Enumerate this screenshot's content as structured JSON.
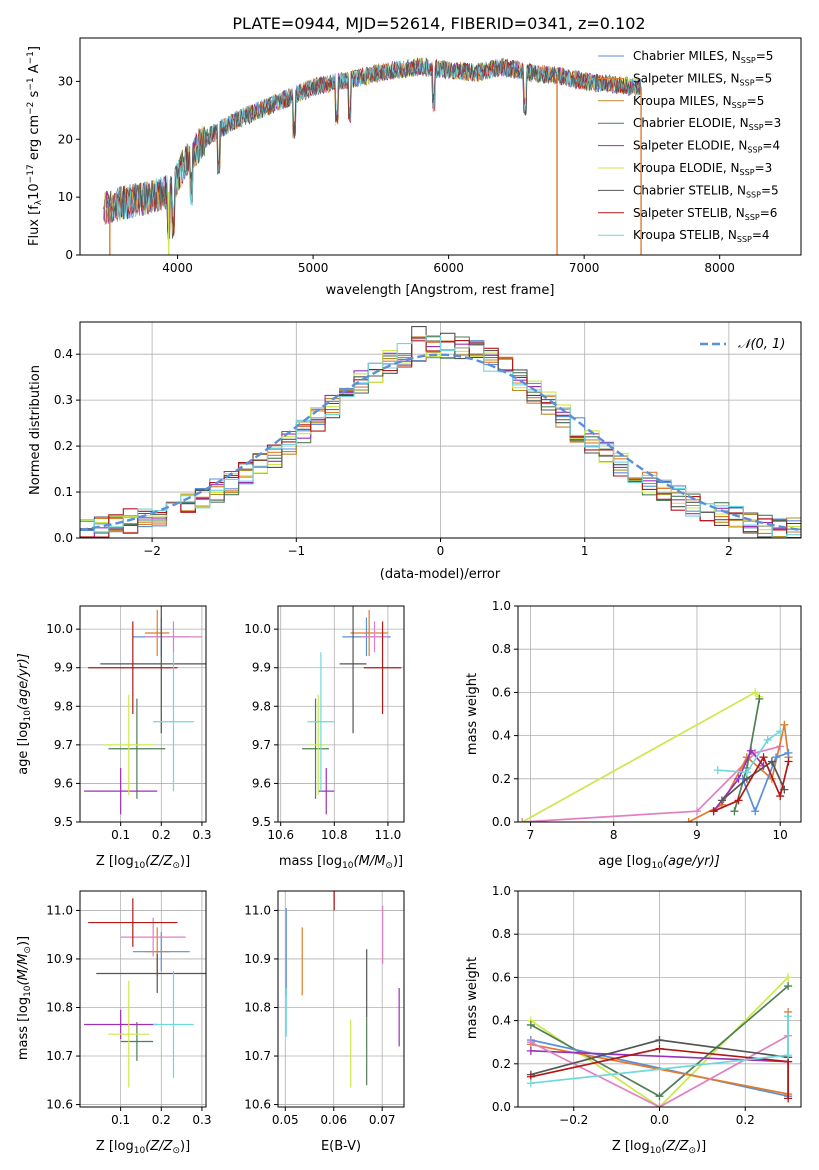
{
  "figure_title": "PLATE=0944, MJD=52614, FIBERID=0341, z=0.102",
  "colors": {
    "Chabrier MILES": "#5b8fd8",
    "Salpeter MILES": "#e07b2e",
    "Kroupa MILES": "#b88a2a",
    "Chabrier ELODIE": "#4f7f55",
    "Salpeter ELODIE": "#9b30b8",
    "Kroupa ELODIE": "#cde84a",
    "Chabrier STELIB": "#555555",
    "Salpeter STELIB": "#b01818",
    "Kroupa STELIB": "#6fd8dc",
    "pink": "#e27fc4",
    "normal": "#5b8fd8",
    "grid": "#b0b0b0"
  },
  "spectrum": {
    "xlabel": "wavelength [Angstrom, rest frame]",
    "ylabel_main": "Flux [f",
    "ylabel_sub": "λ",
    "ylabel_rest": "10",
    "ylabel_sup1": "−17",
    "ylabel_unit": " erg cm",
    "ylabel_sup2": "−2",
    "ylabel_s": " s",
    "ylabel_sup3": "−1",
    "ylabel_A": " A",
    "ylabel_sup4": "−1",
    "ylabel_end": "]",
    "xticks": [
      "4000",
      "5000",
      "6000",
      "7000",
      "8000"
    ],
    "yticks": [
      "0",
      "10",
      "20",
      "30"
    ],
    "legend": [
      {
        "name": "Chabrier MILES",
        "nssp": "5"
      },
      {
        "name": "Salpeter MILES",
        "nssp": "5"
      },
      {
        "name": "Kroupa MILES",
        "nssp": "5"
      },
      {
        "name": "Chabrier ELODIE",
        "nssp": "3"
      },
      {
        "name": "Salpeter ELODIE",
        "nssp": "4"
      },
      {
        "name": "Kroupa ELODIE",
        "nssp": "3"
      },
      {
        "name": "Chabrier STELIB",
        "nssp": "5"
      },
      {
        "name": "Salpeter STELIB",
        "nssp": "6"
      },
      {
        "name": "Kroupa STELIB",
        "nssp": "4"
      }
    ],
    "nssp_prefix": ", N",
    "nssp_sub": "SSP",
    "nssp_eq": "="
  },
  "residuals": {
    "xlabel": "(data-model)/error",
    "ylabel": "Normed distribution",
    "xticks": [
      "−2",
      "−1",
      "0",
      "1",
      "2"
    ],
    "yticks": [
      "0.0",
      "0.1",
      "0.2",
      "0.3",
      "0.4"
    ],
    "legend_label": "𝒩(0, 1)"
  },
  "panels": {
    "age_ylabel": "age  [log",
    "age_ylabel_sub": "10",
    "age_ylabel_rest": "(age/yr)]",
    "z_xlabel": "Z [log",
    "z_xlabel_sub": "10",
    "z_xlabel_rest": "(Z/Z",
    "z_xlabel_sub2": "⊙",
    "z_xlabel_end": ")]",
    "mass_label": "mass [log",
    "mass_label_sub": "10",
    "mass_label_rest": "(M/M",
    "mass_label_sub2": "⊙",
    "mass_label_end": ")]",
    "ebv_xlabel": "E(B-V)",
    "mw_ylabel": "mass weight",
    "age_xlabel": "age  [log",
    "age_xlabel_sub": "10",
    "age_xlabel_rest": "(age/yr)]",
    "age_yticks": [
      "9.5",
      "9.6",
      "9.7",
      "9.8",
      "9.9",
      "10.0"
    ],
    "z_xticks": [
      "0.1",
      "0.2",
      "0.3"
    ],
    "mass_xticks": [
      "10.6",
      "10.8",
      "11.0"
    ],
    "mass_yticks": [
      "10.6",
      "10.7",
      "10.8",
      "10.9",
      "11.0"
    ],
    "ebv_xticks": [
      "0.05",
      "0.06",
      "0.07"
    ],
    "mw_yticks": [
      "0.0",
      "0.2",
      "0.4",
      "0.6",
      "0.8",
      "1.0"
    ],
    "mw_age_xticks": [
      "7",
      "8",
      "9",
      "10"
    ],
    "mw_z_xticks": [
      "−0.2",
      "0.0",
      "0.2"
    ]
  },
  "chart_data": [
    {
      "type": "line",
      "title": "PLATE=0944, MJD=52614, FIBERID=0341, z=0.102",
      "xlabel": "wavelength [Angstrom, rest frame]",
      "ylabel": "Flux [fλ10^-17 erg cm^-2 s^-1 A^-1]",
      "xlim": [
        3280,
        8600
      ],
      "ylim": [
        0,
        37.5
      ],
      "series": [
        {
          "name": "Chabrier MILES, NSSP=5"
        },
        {
          "name": "Salpeter MILES, NSSP=5"
        },
        {
          "name": "Kroupa MILES, NSSP=5"
        },
        {
          "name": "Chabrier ELODIE, NSSP=3"
        },
        {
          "name": "Salpeter ELODIE, NSSP=4"
        },
        {
          "name": "Kroupa ELODIE, NSSP=3"
        },
        {
          "name": "Chabrier STELIB, NSSP=5"
        },
        {
          "name": "Salpeter STELIB, NSSP=6"
        },
        {
          "name": "Kroupa STELIB, NSSP=4"
        }
      ],
      "continuum_x": [
        3450,
        3600,
        3800,
        3950,
        4050,
        4200,
        4400,
        4600,
        4800,
        5000,
        5200,
        5400,
        5600,
        5800,
        6000,
        6200,
        6400,
        6600,
        6800,
        7000,
        7200,
        7400
      ],
      "continuum_y": [
        8,
        9,
        10,
        11,
        16,
        20,
        23,
        25,
        27,
        29,
        30,
        31,
        32,
        32.5,
        32,
        31.5,
        32.5,
        31.5,
        31,
        30,
        29.5,
        29
      ],
      "grid": false,
      "legend": "right"
    },
    {
      "type": "line",
      "xlabel": "(data-model)/error",
      "ylabel": "Normed distribution",
      "xlim": [
        -2.5,
        2.5
      ],
      "ylim": [
        0,
        0.47
      ],
      "bin_width": 0.1,
      "series_names": [
        "Chabrier MILES",
        "Salpeter MILES",
        "Kroupa MILES",
        "Chabrier ELODIE",
        "Salpeter ELODIE",
        "Kroupa ELODIE",
        "Chabrier STELIB",
        "Salpeter STELIB",
        "Kroupa STELIB"
      ],
      "reference": "N(0,1)",
      "grid": true,
      "legend": "top-right"
    },
    {
      "type": "scatter",
      "xlabel": "Z [log10(Z/Z⊙)]",
      "ylabel": "age [log10(age/yr)]",
      "xlim": [
        0.0,
        0.31
      ],
      "ylim": [
        9.5,
        10.06
      ],
      "points": [
        {
          "x": 0.2,
          "y": 9.98,
          "xerr": 0.07,
          "yerr": 0.05,
          "color": "Chabrier MILES"
        },
        {
          "x": 0.19,
          "y": 9.99,
          "xerr": 0.03,
          "yerr": 0.06,
          "color": "Salpeter MILES"
        },
        {
          "x": 0.23,
          "y": 9.98,
          "xerr": 0.07,
          "yerr": 0.04,
          "color": "pink"
        },
        {
          "x": 0.14,
          "y": 9.69,
          "xerr": 0.07,
          "yerr": 0.13,
          "color": "Chabrier ELODIE"
        },
        {
          "x": 0.1,
          "y": 9.58,
          "xerr": 0.09,
          "yerr": 0.06,
          "color": "Salpeter ELODIE"
        },
        {
          "x": 0.12,
          "y": 9.7,
          "xerr": 0.06,
          "yerr": 0.13,
          "color": "Kroupa ELODIE"
        },
        {
          "x": 0.2,
          "y": 9.91,
          "xerr": 0.15,
          "yerr": 0.18,
          "color": "Chabrier STELIB"
        },
        {
          "x": 0.13,
          "y": 9.9,
          "xerr": 0.11,
          "yerr": 0.12,
          "color": "Salpeter STELIB"
        },
        {
          "x": 0.23,
          "y": 9.76,
          "xerr": 0.05,
          "yerr": 0.18,
          "color": "Kroupa STELIB"
        }
      ]
    },
    {
      "type": "scatter",
      "xlabel": "mass [log10(M/M⊙)]",
      "ylabel": "age [log10(age/yr)]",
      "xlim": [
        10.59,
        11.06
      ],
      "ylim": [
        9.5,
        10.06
      ],
      "points": [
        {
          "x": 10.92,
          "y": 9.98,
          "xerr": 0.09,
          "yerr": 0.05,
          "color": "Chabrier MILES"
        },
        {
          "x": 10.93,
          "y": 9.99,
          "xerr": 0.07,
          "yerr": 0.06,
          "color": "Salpeter MILES"
        },
        {
          "x": 10.95,
          "y": 9.98,
          "xerr": 0.05,
          "yerr": 0.04,
          "color": "pink"
        },
        {
          "x": 10.73,
          "y": 9.69,
          "xerr": 0.05,
          "yerr": 0.13,
          "color": "Chabrier ELODIE"
        },
        {
          "x": 10.77,
          "y": 9.58,
          "xerr": 0.03,
          "yerr": 0.06,
          "color": "Salpeter ELODIE"
        },
        {
          "x": 10.74,
          "y": 9.7,
          "xerr": 0.03,
          "yerr": 0.13,
          "color": "Kroupa ELODIE"
        },
        {
          "x": 10.87,
          "y": 9.91,
          "xerr": 0.05,
          "yerr": 0.18,
          "color": "Chabrier STELIB"
        },
        {
          "x": 10.98,
          "y": 9.9,
          "xerr": 0.07,
          "yerr": 0.12,
          "color": "Salpeter STELIB"
        },
        {
          "x": 10.75,
          "y": 9.76,
          "xerr": 0.05,
          "yerr": 0.18,
          "color": "Kroupa STELIB"
        }
      ]
    },
    {
      "type": "line",
      "xlabel": "age [log10(age/yr)]",
      "ylabel": "mass weight",
      "xlim": [
        6.85,
        10.25
      ],
      "ylim": [
        0,
        1
      ],
      "series": [
        {
          "color": "Kroupa ELODIE",
          "x": [
            6.9,
            9.7,
            9.75
          ],
          "y": [
            0.0,
            0.6,
            0.58
          ]
        },
        {
          "color": "pink",
          "x": [
            6.9,
            9.0,
            9.7,
            10.0
          ],
          "y": [
            0.0,
            0.05,
            0.32,
            0.35
          ]
        },
        {
          "color": "Salpeter MILES",
          "x": [
            8.9,
            9.3,
            9.6,
            9.9,
            10.05,
            10.1
          ],
          "y": [
            0.0,
            0.08,
            0.3,
            0.2,
            0.45,
            0.3
          ]
        },
        {
          "color": "Chabrier ELODIE",
          "x": [
            9.45,
            9.6,
            9.75
          ],
          "y": [
            0.05,
            0.25,
            0.57
          ]
        },
        {
          "color": "Salpeter ELODIE",
          "x": [
            9.2,
            9.5,
            9.65,
            9.8
          ],
          "y": [
            0.05,
            0.2,
            0.33,
            0.26
          ]
        },
        {
          "color": "Chabrier MILES",
          "x": [
            9.55,
            9.7,
            9.95,
            10.1
          ],
          "y": [
            0.2,
            0.05,
            0.3,
            0.32
          ]
        },
        {
          "color": "Chabrier STELIB",
          "x": [
            9.3,
            9.6,
            9.9,
            10.05
          ],
          "y": [
            0.1,
            0.2,
            0.28,
            0.15
          ]
        },
        {
          "color": "Salpeter STELIB",
          "x": [
            9.2,
            9.5,
            9.8,
            10.0,
            10.1
          ],
          "y": [
            0.05,
            0.1,
            0.3,
            0.12,
            0.28
          ]
        },
        {
          "color": "Kroupa STELIB",
          "x": [
            9.25,
            9.6,
            9.85,
            10.0
          ],
          "y": [
            0.24,
            0.23,
            0.38,
            0.42
          ]
        }
      ]
    },
    {
      "type": "scatter",
      "xlabel": "Z [log10(Z/Z⊙)]",
      "ylabel": "mass [log10(M/M⊙)]",
      "xlim": [
        0.0,
        0.31
      ],
      "ylim": [
        10.595,
        11.04
      ],
      "points": [
        {
          "x": 0.2,
          "y": 10.915,
          "xerr": 0.07,
          "yerr": 0.04,
          "color": "Chabrier MILES"
        },
        {
          "x": 0.19,
          "y": 10.915,
          "xerr": 0.03,
          "yerr": 0.05,
          "color": "Salpeter MILES"
        },
        {
          "x": 0.18,
          "y": 10.945,
          "xerr": 0.08,
          "yerr": 0.04,
          "color": "pink"
        },
        {
          "x": 0.14,
          "y": 10.73,
          "xerr": 0.04,
          "yerr": 0.04,
          "color": "Chabrier ELODIE"
        },
        {
          "x": 0.1,
          "y": 10.765,
          "xerr": 0.09,
          "yerr": 0.03,
          "color": "Salpeter ELODIE"
        },
        {
          "x": 0.12,
          "y": 10.745,
          "xerr": 0.05,
          "yerr": 0.11,
          "color": "Kroupa ELODIE"
        },
        {
          "x": 0.19,
          "y": 10.87,
          "xerr": 0.15,
          "yerr": 0.04,
          "color": "Chabrier STELIB"
        },
        {
          "x": 0.13,
          "y": 10.975,
          "xerr": 0.11,
          "yerr": 0.05,
          "color": "Salpeter STELIB"
        },
        {
          "x": 0.23,
          "y": 10.765,
          "xerr": 0.05,
          "yerr": 0.11,
          "color": "Kroupa STELIB"
        }
      ]
    },
    {
      "type": "scatter",
      "xlabel": "E(B-V)",
      "ylabel": "",
      "xlim": [
        0.0485,
        0.0745
      ],
      "ylim": [
        10.595,
        11.04
      ],
      "points": [
        {
          "x": 0.0502,
          "y": 10.915,
          "yerr": 0.09,
          "color": "Chabrier MILES"
        },
        {
          "x": 0.0535,
          "y": 10.895,
          "yerr": 0.07,
          "color": "Salpeter MILES"
        },
        {
          "x": 0.0502,
          "y": 10.79,
          "yerr": 0.05,
          "color": "Kroupa STELIB"
        },
        {
          "x": 0.0601,
          "y": 11.06,
          "yerr": 0.06,
          "color": "Salpeter STELIB"
        },
        {
          "x": 0.0635,
          "y": 10.705,
          "yerr": 0.07,
          "color": "Kroupa ELODIE"
        },
        {
          "x": 0.0668,
          "y": 10.85,
          "yerr": 0.07,
          "color": "Chabrier STELIB"
        },
        {
          "x": 0.0668,
          "y": 10.71,
          "yerr": 0.07,
          "color": "Chabrier ELODIE"
        },
        {
          "x": 0.0701,
          "y": 10.95,
          "yerr": 0.06,
          "color": "pink"
        },
        {
          "x": 0.0735,
          "y": 10.78,
          "yerr": 0.06,
          "color": "Salpeter ELODIE"
        }
      ]
    },
    {
      "type": "line",
      "xlabel": "Z [log10(Z/Z⊙)]",
      "ylabel": "mass weight",
      "xlim": [
        -0.33,
        0.33
      ],
      "ylim": [
        0,
        1
      ],
      "series": [
        {
          "color": "Kroupa ELODIE",
          "x": [
            -0.3,
            0.0,
            0.3
          ],
          "y": [
            0.4,
            0.0,
            0.6
          ]
        },
        {
          "color": "Chabrier ELODIE",
          "x": [
            -0.3,
            0.0,
            0.3
          ],
          "y": [
            0.38,
            0.05,
            0.56
          ]
        },
        {
          "color": "Chabrier MILES",
          "x": [
            -0.3,
            0.3
          ],
          "y": [
            0.31,
            0.05
          ]
        },
        {
          "color": "Salpeter MILES",
          "x": [
            -0.3,
            0.3,
            0.3
          ],
          "y": [
            0.29,
            0.06,
            0.44
          ]
        },
        {
          "color": "Salpeter ELODIE",
          "x": [
            -0.3,
            0.3
          ],
          "y": [
            0.26,
            0.21
          ]
        },
        {
          "color": "pink",
          "x": [
            -0.3,
            0.0,
            0.3
          ],
          "y": [
            0.3,
            0.0,
            0.33
          ]
        },
        {
          "color": "Chabrier STELIB",
          "x": [
            -0.3,
            0.0,
            0.3
          ],
          "y": [
            0.15,
            0.31,
            0.23
          ]
        },
        {
          "color": "Salpeter STELIB",
          "x": [
            -0.3,
            0.0,
            0.3,
            0.3
          ],
          "y": [
            0.14,
            0.27,
            0.21,
            0.04
          ]
        },
        {
          "color": "Kroupa STELIB",
          "x": [
            -0.3,
            0.3,
            0.3
          ],
          "y": [
            0.11,
            0.24,
            0.42
          ]
        }
      ]
    }
  ]
}
